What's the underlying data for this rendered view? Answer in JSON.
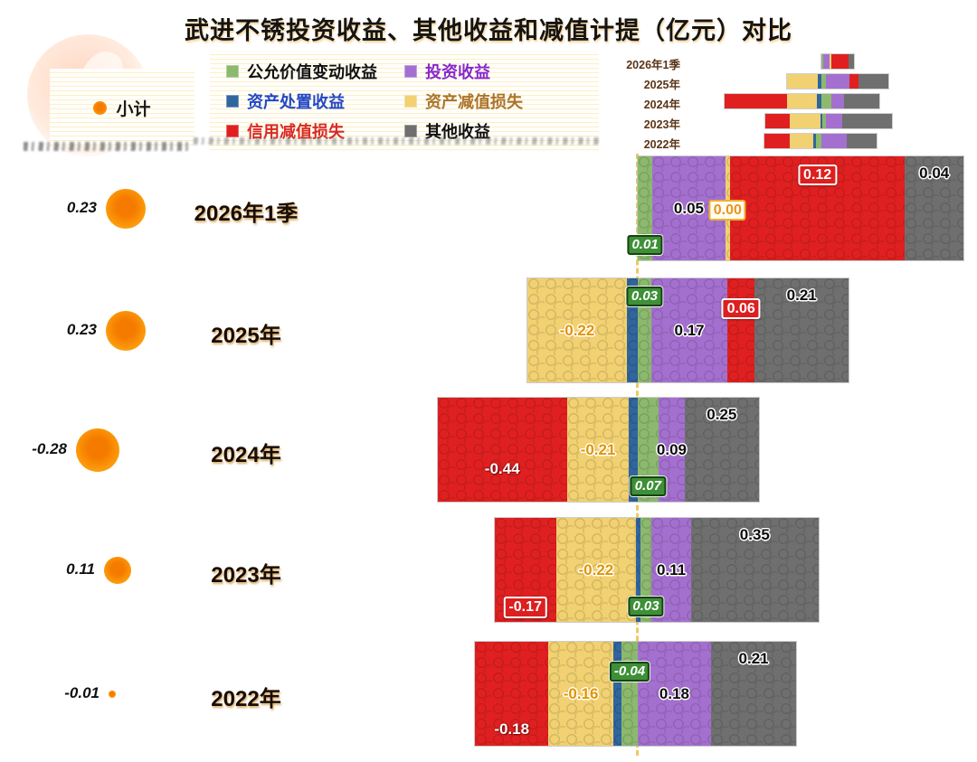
{
  "title": "武进不锈投资收益、其他收益和减值计提（亿元）对比",
  "legend": {
    "subtotal": {
      "label": "小计",
      "color": "#FB9204"
    },
    "items": [
      {
        "id": "fair_value",
        "label": "公允价值变动收益",
        "color": "#8CB96E",
        "text_color": "#111111"
      },
      {
        "id": "investment",
        "label": "投资收益",
        "color": "#A470CF",
        "text_color": "#8827C9"
      },
      {
        "id": "asset_disposal",
        "label": "资产处置收益",
        "color": "#31659E",
        "text_color": "#2348C4"
      },
      {
        "id": "asset_impairment",
        "label": "资产减值损失",
        "color": "#F1D171",
        "text_color": "#AC7428"
      },
      {
        "id": "credit_impairment",
        "label": "信用减值损失",
        "color": "#E02020",
        "text_color": "#DA2A20"
      },
      {
        "id": "other_income",
        "label": "其他收益",
        "color": "#6F6F6F",
        "text_color": "#111111"
      }
    ]
  },
  "chart_data": {
    "type": "bar",
    "variant": "horizontal_diverging_stacked",
    "unit": "亿元",
    "title": "武进不锈投资收益、其他收益和减值计提（亿元）对比",
    "legend_position": "top",
    "categories": [
      "2026年1季",
      "2025年",
      "2024年",
      "2023年",
      "2022年"
    ],
    "series": [
      "公允价值变动收益",
      "投资收益",
      "资产处置收益",
      "资产减值损失",
      "信用减值损失",
      "其他收益"
    ],
    "subtotal_series": {
      "name": "小计",
      "values": [
        0.23,
        0.23,
        -0.28,
        0.11,
        -0.01
      ],
      "labels": [
        "0.23",
        "0.23",
        "-0.28",
        "0.11",
        "-0.01"
      ]
    },
    "rows": [
      {
        "category": "2026年1季",
        "segments": [
          {
            "series": "公允价值变动收益",
            "color_id": "fair_value",
            "value": 0.01,
            "label": "0.01",
            "label_style": "green-badge",
            "label_pos": "bottom"
          },
          {
            "series": "投资收益",
            "color_id": "investment",
            "value": 0.05,
            "label": "0.05",
            "label_style": "black",
            "label_pos": "mid"
          },
          {
            "series": "资产减值损失",
            "color_id": "asset_impairment",
            "value": 0.0,
            "label": "0.00",
            "label_style": "gold-badge",
            "label_pos": "mid"
          },
          {
            "series": "信用减值损失",
            "color_id": "credit_impairment",
            "value": 0.12,
            "label": "0.12",
            "label_style": "red-badge",
            "label_pos": "top"
          },
          {
            "series": "其他收益",
            "color_id": "other_income",
            "value": 0.04,
            "label": "0.04",
            "label_style": "black",
            "label_pos": "top"
          }
        ]
      },
      {
        "category": "2025年",
        "segments": [
          {
            "series": "资产减值损失",
            "color_id": "asset_impairment",
            "value": -0.22,
            "label": "-0.22",
            "label_style": "gold",
            "label_pos": "mid"
          },
          {
            "series": "资产处置收益",
            "color_id": "asset_disposal",
            "value": null,
            "est_abs": 0.025,
            "label": null
          },
          {
            "series": "公允价值变动收益",
            "color_id": "fair_value",
            "value": 0.03,
            "label": "0.03",
            "label_style": "green-badge",
            "label_pos": "top"
          },
          {
            "series": "投资收益",
            "color_id": "investment",
            "value": 0.17,
            "label": "0.17",
            "label_style": "black",
            "label_pos": "mid"
          },
          {
            "series": "信用减值损失",
            "color_id": "credit_impairment",
            "value": 0.06,
            "label": "0.06",
            "label_style": "red-badge",
            "label_pos": "upper"
          },
          {
            "series": "其他收益",
            "color_id": "other_income",
            "value": 0.21,
            "label": "0.21",
            "label_style": "black",
            "label_pos": "top"
          }
        ]
      },
      {
        "category": "2024年",
        "segments": [
          {
            "series": "信用减值损失",
            "color_id": "credit_impairment",
            "value": -0.44,
            "label": "-0.44",
            "label_style": "white",
            "label_pos": "low"
          },
          {
            "series": "资产减值损失",
            "color_id": "asset_impairment",
            "value": -0.21,
            "label": "-0.21",
            "label_style": "gold",
            "label_pos": "mid"
          },
          {
            "series": "资产处置收益",
            "color_id": "asset_disposal",
            "value": null,
            "est_abs": 0.03,
            "label": null
          },
          {
            "series": "公允价值变动收益",
            "color_id": "fair_value",
            "value": 0.07,
            "label": "0.07",
            "label_style": "green-badge",
            "label_pos": "bottom"
          },
          {
            "series": "投资收益",
            "color_id": "investment",
            "value": 0.09,
            "label": "0.09",
            "label_style": "black",
            "label_pos": "mid"
          },
          {
            "series": "其他收益",
            "color_id": "other_income",
            "value": 0.25,
            "label": "0.25",
            "label_style": "black",
            "label_pos": "top"
          }
        ]
      },
      {
        "category": "2023年",
        "segments": [
          {
            "series": "信用减值损失",
            "color_id": "credit_impairment",
            "value": -0.17,
            "label": "-0.17",
            "label_style": "red-badge",
            "label_pos": "bottom"
          },
          {
            "series": "资产减值损失",
            "color_id": "asset_impairment",
            "value": -0.22,
            "label": "-0.22",
            "label_style": "gold",
            "label_pos": "mid"
          },
          {
            "series": "资产处置收益",
            "color_id": "asset_disposal",
            "value": null,
            "est_abs": 0.005,
            "label": null
          },
          {
            "series": "公允价值变动收益",
            "color_id": "fair_value",
            "value": 0.03,
            "label": "0.03",
            "label_style": "green-badge",
            "label_pos": "bottom"
          },
          {
            "series": "投资收益",
            "color_id": "investment",
            "value": 0.11,
            "label": "0.11",
            "label_style": "black",
            "label_pos": "mid"
          },
          {
            "series": "其他收益",
            "color_id": "other_income",
            "value": 0.35,
            "label": "0.35",
            "label_style": "black",
            "label_pos": "top"
          }
        ]
      },
      {
        "category": "2022年",
        "segments": [
          {
            "series": "信用减值损失",
            "color_id": "credit_impairment",
            "value": -0.18,
            "label": "-0.18",
            "label_style": "white",
            "label_pos": "bottom"
          },
          {
            "series": "资产减值损失",
            "color_id": "asset_impairment",
            "value": -0.16,
            "label": "-0.16",
            "label_style": "gold",
            "label_pos": "mid"
          },
          {
            "series": "资产处置收益",
            "color_id": "asset_disposal",
            "value": null,
            "est_abs": 0.02,
            "label": null
          },
          {
            "series": "公允价值变动收益",
            "color_id": "fair_value",
            "value": -0.04,
            "label": "-0.04",
            "label_style": "green-badge",
            "label_pos": "upper"
          },
          {
            "series": "投资收益",
            "color_id": "investment",
            "value": 0.18,
            "label": "0.18",
            "label_style": "black",
            "label_pos": "mid"
          },
          {
            "series": "其他收益",
            "color_id": "other_income",
            "value": 0.21,
            "label": "0.21",
            "label_style": "black",
            "label_pos": "top"
          }
        ]
      }
    ]
  }
}
